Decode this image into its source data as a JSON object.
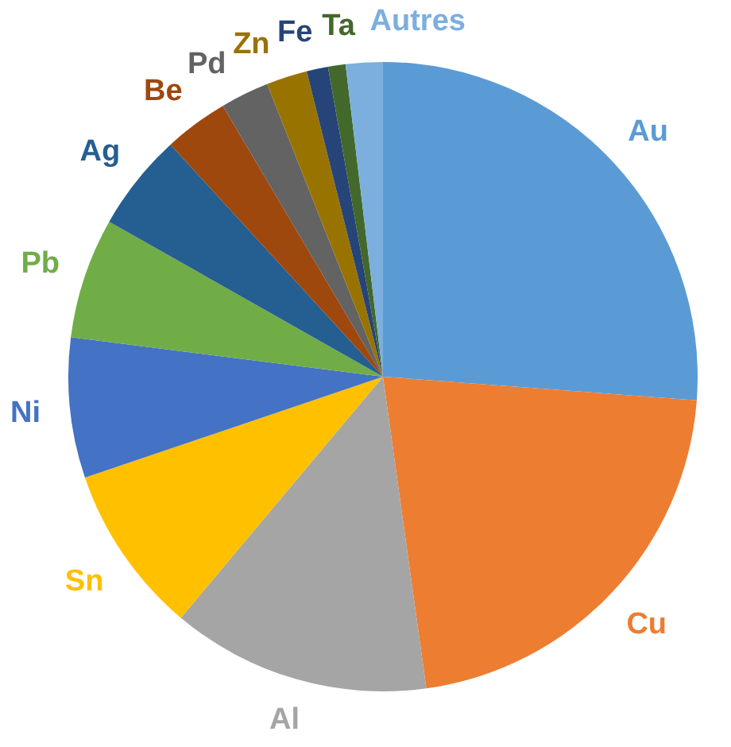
{
  "chart_data": {
    "type": "pie",
    "categories": [
      "Au",
      "Cu",
      "Al",
      "Sn",
      "Ni",
      "Pb",
      "Ag",
      "Be",
      "Pd",
      "Zn",
      "Fe",
      "Ta",
      "Autres"
    ],
    "values": [
      26.2,
      21.6,
      13.3,
      8.7,
      7.2,
      6.2,
      5.0,
      3.3,
      2.5,
      2.1,
      1.1,
      0.9,
      1.9
    ],
    "colors": [
      "#5b9bd5",
      "#ed7d31",
      "#a5a5a5",
      "#ffc000",
      "#4472c4",
      "#70ad47",
      "#255e91",
      "#9e480e",
      "#636363",
      "#997300",
      "#264478",
      "#43682b",
      "#7cafdd"
    ]
  }
}
